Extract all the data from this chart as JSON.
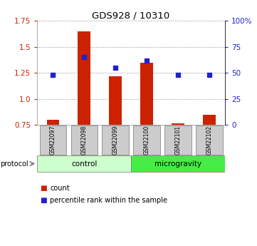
{
  "title": "GDS928 / 10310",
  "samples": [
    "GSM22097",
    "GSM22098",
    "GSM22099",
    "GSM22100",
    "GSM22101",
    "GSM22102"
  ],
  "count_values": [
    0.8,
    1.65,
    1.22,
    1.35,
    0.765,
    0.85
  ],
  "percentile_values": [
    48,
    65,
    55,
    62,
    48,
    48
  ],
  "ylim_left": [
    0.75,
    1.75
  ],
  "ylim_right": [
    0,
    100
  ],
  "left_ticks": [
    0.75,
    1.0,
    1.25,
    1.5,
    1.75
  ],
  "right_ticks": [
    0,
    25,
    50,
    75,
    100
  ],
  "right_tick_labels": [
    "0",
    "25",
    "50",
    "75",
    "100%"
  ],
  "bar_color": "#cc2200",
  "dot_color": "#2222cc",
  "bar_width": 0.4,
  "groups": [
    {
      "label": "control",
      "indices": [
        0,
        1,
        2
      ],
      "color": "#ccffcc"
    },
    {
      "label": "microgravity",
      "indices": [
        3,
        4,
        5
      ],
      "color": "#44ee44"
    }
  ],
  "protocol_label": "protocol",
  "legend_items": [
    {
      "color": "#cc2200",
      "label": "count"
    },
    {
      "color": "#2222cc",
      "label": "percentile rank within the sample"
    }
  ],
  "grid_color": "#888888",
  "sample_box_color": "#cccccc",
  "background_color": "#ffffff"
}
